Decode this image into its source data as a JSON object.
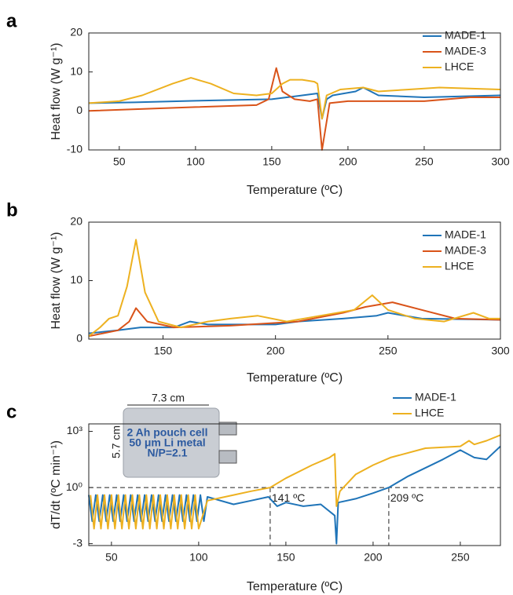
{
  "chart_data": [
    {
      "type": "line",
      "label": "a",
      "xlabel": "Temperature (ºC)",
      "ylabel": "Heat flow (W g⁻¹)",
      "xlim": [
        30,
        300
      ],
      "xticks": [
        50,
        100,
        150,
        200,
        250,
        300
      ],
      "ylim": [
        -10,
        20
      ],
      "yticks": [
        -10,
        0,
        10,
        20
      ],
      "legend": "upper right",
      "series": [
        {
          "name": "MADE-1",
          "color": "#1f74b8",
          "x": [
            30,
            60,
            100,
            150,
            170,
            180,
            183,
            186,
            190,
            205,
            210,
            220,
            250,
            300
          ],
          "values": [
            2,
            2.2,
            2.6,
            3,
            4,
            4.5,
            -2,
            3,
            4,
            5,
            6,
            4,
            3.5,
            4
          ]
        },
        {
          "name": "MADE-3",
          "color": "#d95319",
          "x": [
            30,
            100,
            140,
            148,
            153,
            157,
            165,
            175,
            180,
            183,
            188,
            200,
            250,
            280,
            300
          ],
          "values": [
            0,
            1,
            1.5,
            3,
            11,
            5,
            3,
            2.5,
            3,
            -10,
            2,
            2.5,
            2.5,
            3.5,
            3.5
          ]
        },
        {
          "name": "LHCE",
          "color": "#edb120",
          "x": [
            30,
            50,
            65,
            85,
            97,
            110,
            125,
            140,
            150,
            157,
            162,
            170,
            178,
            180,
            183,
            186,
            195,
            210,
            220,
            240,
            260,
            300
          ],
          "values": [
            2,
            2.5,
            4,
            7,
            8.5,
            7,
            4.5,
            4,
            4.5,
            7,
            8,
            8,
            7.5,
            7,
            -2,
            4,
            5.5,
            6,
            5,
            5.5,
            6,
            5.5
          ]
        }
      ]
    },
    {
      "type": "line",
      "label": "b",
      "xlabel": "Temperature (ºC)",
      "ylabel": "Heat flow (W g⁻¹)",
      "xlim": [
        117,
        300
      ],
      "xticks": [
        150,
        200,
        250,
        300
      ],
      "ylim": [
        0,
        20
      ],
      "yticks": [
        0,
        10,
        20
      ],
      "legend": "upper right",
      "series": [
        {
          "name": "MADE-1",
          "color": "#1f74b8",
          "x": [
            117,
            130,
            140,
            155,
            162,
            170,
            200,
            210,
            230,
            245,
            250,
            265,
            300
          ],
          "values": [
            1,
            1.5,
            2,
            2,
            3,
            2.5,
            2.5,
            3,
            3.5,
            4,
            4.5,
            3.5,
            3.3
          ]
        },
        {
          "name": "MADE-3",
          "color": "#d95319",
          "x": [
            117,
            130,
            135,
            138,
            143,
            155,
            180,
            210,
            230,
            240,
            252,
            265,
            280,
            300
          ],
          "values": [
            0.5,
            1.5,
            3,
            5.3,
            3,
            2,
            2.3,
            3,
            4.5,
            5.5,
            6.3,
            5,
            3.5,
            3.3
          ]
        },
        {
          "name": "LHCE",
          "color": "#edb120",
          "x": [
            117,
            122,
            126,
            130,
            134,
            138,
            142,
            148,
            158,
            170,
            180,
            192,
            205,
            220,
            235,
            243,
            250,
            262,
            275,
            288,
            295,
            300
          ],
          "values": [
            0.5,
            2,
            3.5,
            4,
            9,
            17,
            8,
            3,
            2,
            3,
            3.5,
            4,
            3,
            4,
            5,
            7.5,
            5,
            3.5,
            3,
            4.5,
            3.5,
            3.5
          ]
        }
      ]
    },
    {
      "type": "line",
      "label": "c",
      "xlabel": "Temperature (ºC)",
      "ylabel": "dT/dt (ºC min⁻¹)",
      "xlim": [
        37,
        273
      ],
      "xticks": [
        50,
        100,
        150,
        200,
        250
      ],
      "ylim": [
        -3.1,
        3.4
      ],
      "yticks": [
        {
          "value": -3,
          "label": "-3"
        },
        {
          "value": 0,
          "label": "10⁰"
        },
        {
          "value": 3,
          "label": "10³"
        }
      ],
      "legend": "upper right",
      "reference_y": 0,
      "annotations": [
        {
          "text": "141 ºC",
          "x": 141
        },
        {
          "text": "209 ºC",
          "x": 209
        }
      ],
      "inset": {
        "width_label": "7.3 cm",
        "height_label": "5.7 cm",
        "lines": [
          "2 Ah pouch cell",
          "50 μm Li metal",
          "N/P=2.1"
        ]
      },
      "series": [
        {
          "name": "MADE-1",
          "color": "#1f74b8",
          "x": [
            37,
            39,
            41,
            43,
            45,
            47,
            49,
            51,
            53,
            55,
            57,
            59,
            61,
            63,
            65,
            67,
            69,
            71,
            73,
            75,
            77,
            79,
            81,
            83,
            85,
            87,
            89,
            91,
            93,
            95,
            97,
            99,
            101,
            103,
            105,
            120,
            130,
            140,
            145,
            150,
            160,
            170,
            178,
            179,
            180,
            190,
            200,
            209,
            220,
            240,
            250,
            258,
            265,
            273
          ],
          "values": [
            -0.4,
            -1.8,
            -0.4,
            -1.8,
            -0.4,
            -1.8,
            -0.4,
            -1.8,
            -0.4,
            -1.8,
            -0.4,
            -1.8,
            -0.4,
            -1.8,
            -0.4,
            -1.8,
            -0.4,
            -1.8,
            -0.4,
            -1.8,
            -0.4,
            -1.8,
            -0.4,
            -1.8,
            -0.4,
            -1.8,
            -0.4,
            -1.8,
            -0.4,
            -1.8,
            -0.4,
            -1.8,
            -0.4,
            -1.8,
            -0.5,
            -0.9,
            -0.7,
            -0.5,
            -1,
            -0.8,
            -1,
            -0.9,
            -1.5,
            -3,
            -0.8,
            -0.6,
            -0.3,
            0,
            0.6,
            1.5,
            2,
            1.6,
            1.5,
            2.2
          ]
        },
        {
          "name": "LHCE",
          "color": "#edb120",
          "x": [
            38,
            40,
            42,
            44,
            46,
            48,
            50,
            52,
            54,
            56,
            58,
            60,
            62,
            64,
            66,
            68,
            70,
            72,
            74,
            76,
            78,
            80,
            82,
            84,
            86,
            88,
            90,
            92,
            94,
            96,
            98,
            100,
            105,
            120,
            130,
            141,
            150,
            165,
            175,
            178,
            179,
            181,
            190,
            200,
            210,
            230,
            250,
            255,
            258,
            265,
            273
          ],
          "values": [
            -0.4,
            -2.2,
            -0.4,
            -2.2,
            -0.4,
            -2.2,
            -0.4,
            -2.2,
            -0.4,
            -2.2,
            -0.4,
            -2.2,
            -0.4,
            -2.2,
            -0.4,
            -2.2,
            -0.4,
            -2.2,
            -0.4,
            -2.2,
            -0.4,
            -2.2,
            -0.4,
            -2.2,
            -0.4,
            -2.2,
            -0.4,
            -2.2,
            -0.4,
            -2.2,
            -0.4,
            -2.2,
            -0.7,
            -0.4,
            -0.2,
            0,
            0.5,
            1.2,
            1.6,
            1.8,
            -1,
            -0.2,
            0.7,
            1.2,
            1.6,
            2.1,
            2.2,
            2.5,
            2.3,
            2.5,
            2.8
          ]
        }
      ]
    }
  ]
}
